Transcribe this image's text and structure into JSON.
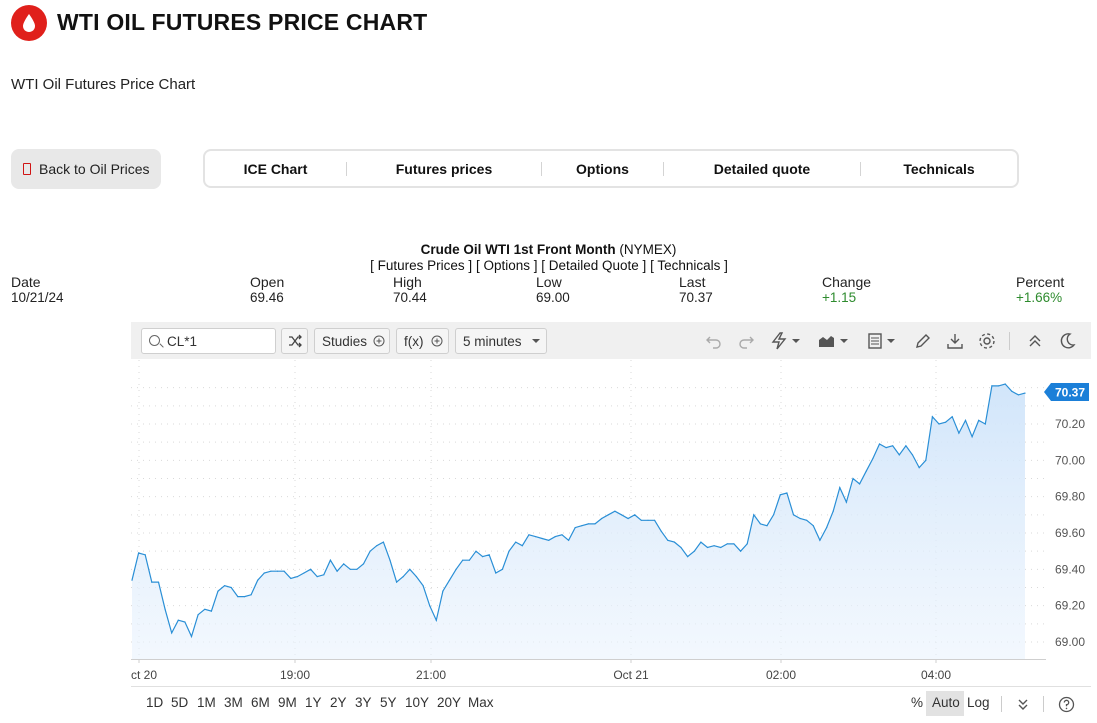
{
  "header": {
    "title": "WTI OIL FUTURES PRICE CHART",
    "subtitle": "WTI Oil Futures Price Chart",
    "back_button": "Back to Oil Prices",
    "colors": {
      "brand": "#e0201b"
    }
  },
  "tabs": [
    "ICE Chart",
    "Futures prices",
    "Options",
    "Detailed quote",
    "Technicals"
  ],
  "quote": {
    "name": "Crude Oil WTI 1st Front Month",
    "exchange": "(NYMEX)",
    "links": [
      "[ Futures Prices ]",
      "[ Options ]",
      "[ Detailed Quote ]",
      "[ Technicals ]"
    ],
    "labels": {
      "date": "Date",
      "open": "Open",
      "high": "High",
      "low": "Low",
      "last": "Last",
      "change": "Change",
      "percent": "Percent"
    },
    "values": {
      "date": "10/21/24",
      "open": "69.46",
      "high": "70.44",
      "low": "69.00",
      "last": "70.37",
      "change": "+1.15",
      "percent": "+1.66%"
    }
  },
  "toolbar": {
    "symbol": "CL*1",
    "studies": "Studies",
    "fx": "f(x)",
    "interval": "5 minutes",
    "icons": [
      "undo-icon",
      "redo-icon",
      "lightning-icon",
      "chart-type-icon",
      "template-icon",
      "pencil-icon",
      "download-icon",
      "gear-icon",
      "collapse-icon",
      "moon-icon"
    ]
  },
  "ranges": [
    "1D",
    "5D",
    "1M",
    "3M",
    "6M",
    "9M",
    "1Y",
    "2Y",
    "3Y",
    "5Y",
    "10Y",
    "20Y",
    "Max"
  ],
  "scale_options": [
    "%",
    "Auto",
    "Log"
  ],
  "chart_data": {
    "type": "area",
    "x_tick_labels": [
      "ct 20",
      "19:00",
      "21:00",
      "Oct 21",
      "02:00",
      "04:00"
    ],
    "y_ticks": [
      69.0,
      69.2,
      69.4,
      69.6,
      69.8,
      70.0,
      70.2
    ],
    "ylim": [
      68.96,
      70.52
    ],
    "last_price_label": "70.37",
    "colors": {
      "line": "#2a8fd6",
      "fill_top": "#cfe4fa",
      "last_badge": "#1b7fd8"
    },
    "grid": true,
    "series": [
      {
        "values": [
          69.34,
          69.49,
          69.48,
          69.33,
          69.33,
          69.18,
          69.05,
          69.12,
          69.11,
          69.03,
          69.15,
          69.18,
          69.17,
          69.28,
          69.31,
          69.3,
          69.25,
          69.25,
          69.26,
          69.34,
          69.38,
          69.39,
          69.39,
          69.39,
          69.35,
          69.36,
          69.38,
          69.4,
          69.36,
          69.37,
          69.45,
          69.39,
          69.43,
          69.4,
          69.4,
          69.43,
          69.5,
          69.53,
          69.55,
          69.45,
          69.33,
          69.36,
          69.4,
          69.36,
          69.31,
          69.2,
          69.12,
          69.28,
          69.34,
          69.4,
          69.45,
          69.45,
          69.5,
          69.47,
          69.48,
          69.38,
          69.4,
          69.5,
          69.55,
          69.53,
          69.59,
          69.58,
          69.57,
          69.56,
          69.58,
          69.59,
          69.56,
          69.63,
          69.64,
          69.65,
          69.65,
          69.68,
          69.7,
          69.72,
          69.7,
          69.68,
          69.7,
          69.67,
          69.67,
          69.67,
          69.61,
          69.56,
          69.55,
          69.52,
          69.47,
          69.5,
          69.55,
          69.52,
          69.53,
          69.52,
          69.54,
          69.54,
          69.5,
          69.54,
          69.7,
          69.65,
          69.64,
          69.7,
          69.81,
          69.82,
          69.7,
          69.68,
          69.67,
          69.64,
          69.56,
          69.63,
          69.72,
          69.85,
          69.77,
          69.9,
          69.87,
          69.94,
          70.01,
          70.09,
          70.07,
          70.08,
          70.03,
          70.08,
          70.03,
          69.96,
          70.0,
          70.24,
          70.2,
          70.21,
          70.24,
          70.15,
          70.22,
          70.13,
          70.22,
          70.2,
          70.41,
          70.41,
          70.42,
          70.38,
          70.36,
          70.37
        ]
      }
    ]
  }
}
